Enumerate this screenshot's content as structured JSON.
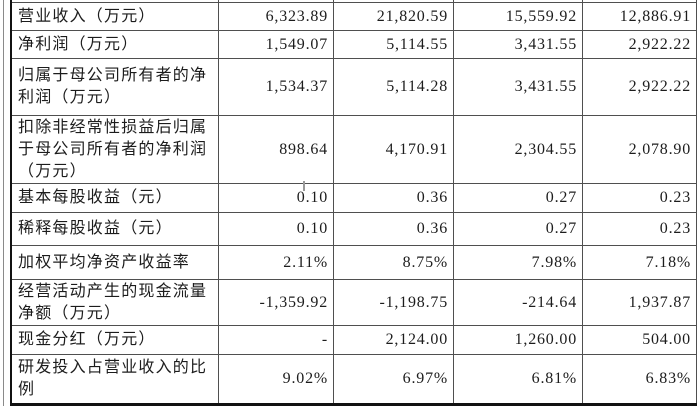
{
  "colors": {
    "page_background": "#ffffff",
    "text": "#1c1c1c",
    "grid_line": "#4f4f4f",
    "outer_border": "#111111",
    "artifact_tick": "#9a9a9a"
  },
  "table": {
    "description": "key-financial-data-table",
    "rows": [
      {
        "label": "营业收入（万元）",
        "values": [
          "6,323.89",
          "21,820.59",
          "15,559.92",
          "12,886.91"
        ]
      },
      {
        "label": "净利润（万元）",
        "values": [
          "1,549.07",
          "5,114.55",
          "3,431.55",
          "2,922.22"
        ]
      },
      {
        "label": "归属于母公司所有者的净\n利润（万元）",
        "values": [
          "1,534.37",
          "5,114.28",
          "3,431.55",
          "2,922.22"
        ]
      },
      {
        "label": "扣除非经常性损益后归属\n于母公司所有者的净利润\n（万元）",
        "values": [
          "898.64",
          "4,170.91",
          "2,304.55",
          "2,078.90"
        ]
      },
      {
        "label": "基本每股收益（元）",
        "values": [
          "0.10",
          "0.36",
          "0.27",
          "0.23"
        ]
      },
      {
        "label": "稀释每股收益（元）",
        "values": [
          "0.10",
          "0.36",
          "0.27",
          "0.23"
        ]
      },
      {
        "label": "加权平均净资产收益率",
        "values": [
          "2.11%",
          "8.75%",
          "7.98%",
          "7.18%"
        ]
      },
      {
        "label": "经营活动产生的现金流量\n净额（万元）",
        "values": [
          "-1,359.92",
          "-1,198.75",
          "-214.64",
          "1,937.87"
        ]
      },
      {
        "label": "现金分红（万元）",
        "values": [
          "-",
          "2,124.00",
          "1,260.00",
          "504.00"
        ]
      },
      {
        "label": "研发投入占营业收入的比\n例",
        "values": [
          "9.02%",
          "6.97%",
          "6.81%",
          "6.83%"
        ]
      }
    ]
  }
}
